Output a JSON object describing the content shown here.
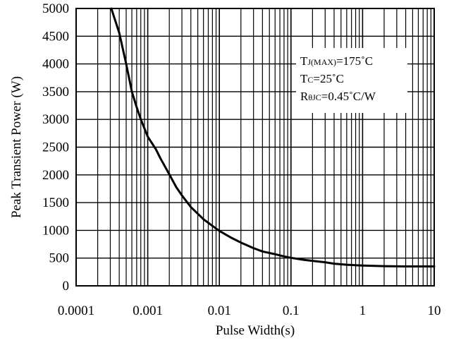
{
  "chart_data": {
    "type": "line",
    "xlabel": "Pulse Width(s)",
    "ylabel": "Peak Transient Power (W)",
    "x_scale": "log",
    "xlim": [
      0.0001,
      10
    ],
    "ylim": [
      0,
      5000
    ],
    "x_ticks": [
      "0.0001",
      "0.001",
      "0.01",
      "0.1",
      "1",
      "10"
    ],
    "y_ticks": [
      "0",
      "500",
      "1000",
      "1500",
      "2000",
      "2500",
      "3000",
      "3500",
      "4000",
      "4500",
      "5000"
    ],
    "grid": true,
    "series": [
      {
        "x": [
          0.00031,
          0.0004,
          0.0005,
          0.0006,
          0.0007,
          0.0008,
          0.001,
          0.0013,
          0.0015,
          0.002,
          0.0025,
          0.003,
          0.004,
          0.005,
          0.006,
          0.008,
          0.01,
          0.015,
          0.02,
          0.03,
          0.04,
          0.06,
          0.08,
          0.1,
          0.15,
          0.2,
          0.3,
          0.4,
          0.6,
          1,
          2,
          4,
          10
        ],
        "y": [
          5000,
          4560,
          4000,
          3500,
          3220,
          3000,
          2690,
          2460,
          2300,
          2010,
          1780,
          1630,
          1420,
          1300,
          1200,
          1080,
          990,
          860,
          780,
          680,
          620,
          570,
          530,
          505,
          470,
          450,
          425,
          400,
          380,
          365,
          355,
          350,
          350
        ]
      }
    ],
    "annotations": [
      {
        "main": "T",
        "sub": "J(MAX)",
        "rest": "=175˚C"
      },
      {
        "main": "T",
        "sub": "C",
        "rest": "=25˚C"
      },
      {
        "main": "R",
        "sub": "θJC",
        "rest": "=0.45˚C/W"
      }
    ]
  }
}
